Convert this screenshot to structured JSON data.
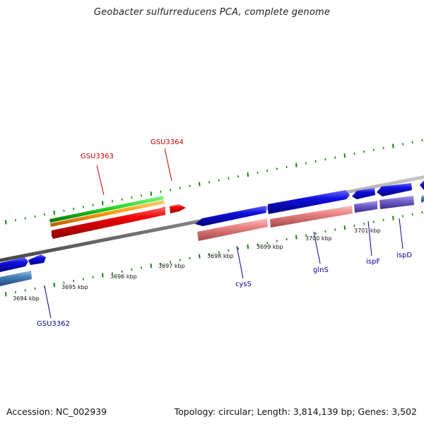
{
  "title": "Geobacter sulfurreducens PCA, complete genome",
  "footer": {
    "accession": "Accession: NC_002939",
    "topology": "Topology: circular; Length: 3,814,139 bp; Genes: 3,502"
  },
  "colors": {
    "backbone": "#888888",
    "gene_forward": "#1010e0",
    "gene_reverse": "#2020e8",
    "gene_light": "#4a80b8",
    "gene_purple": "#7060c8",
    "pink": "#e88080",
    "red": "#ee0000",
    "green": "#22cc22",
    "orange": "#ff9900",
    "tick": "#118811",
    "label_blue": "#000099",
    "label_red": "#cc0000"
  },
  "ruler_labels": [
    {
      "text": "3694 kbp",
      "kbp": 3694
    },
    {
      "text": "3695 kbp",
      "kbp": 3695
    },
    {
      "text": "3696 kbp",
      "kbp": 3696
    },
    {
      "text": "3697 kbp",
      "kbp": 3697
    },
    {
      "text": "3698 kbp",
      "kbp": 3698
    },
    {
      "text": "3699 kbp",
      "kbp": 3699
    },
    {
      "text": "3700 kbp",
      "kbp": 3700
    },
    {
      "text": "3701 kbp",
      "kbp": 3701
    }
  ],
  "gene_labels": [
    {
      "text": "GSU3363",
      "color_key": "label_red"
    },
    {
      "text": "GSU3364",
      "color_key": "label_red"
    },
    {
      "text": "GSU3362",
      "color_key": "label_blue"
    },
    {
      "text": "cysS",
      "color_key": "label_blue"
    },
    {
      "text": "glnS",
      "color_key": "label_blue"
    },
    {
      "text": "ispF",
      "color_key": "label_blue"
    },
    {
      "text": "ispD",
      "color_key": "label_blue"
    }
  ]
}
